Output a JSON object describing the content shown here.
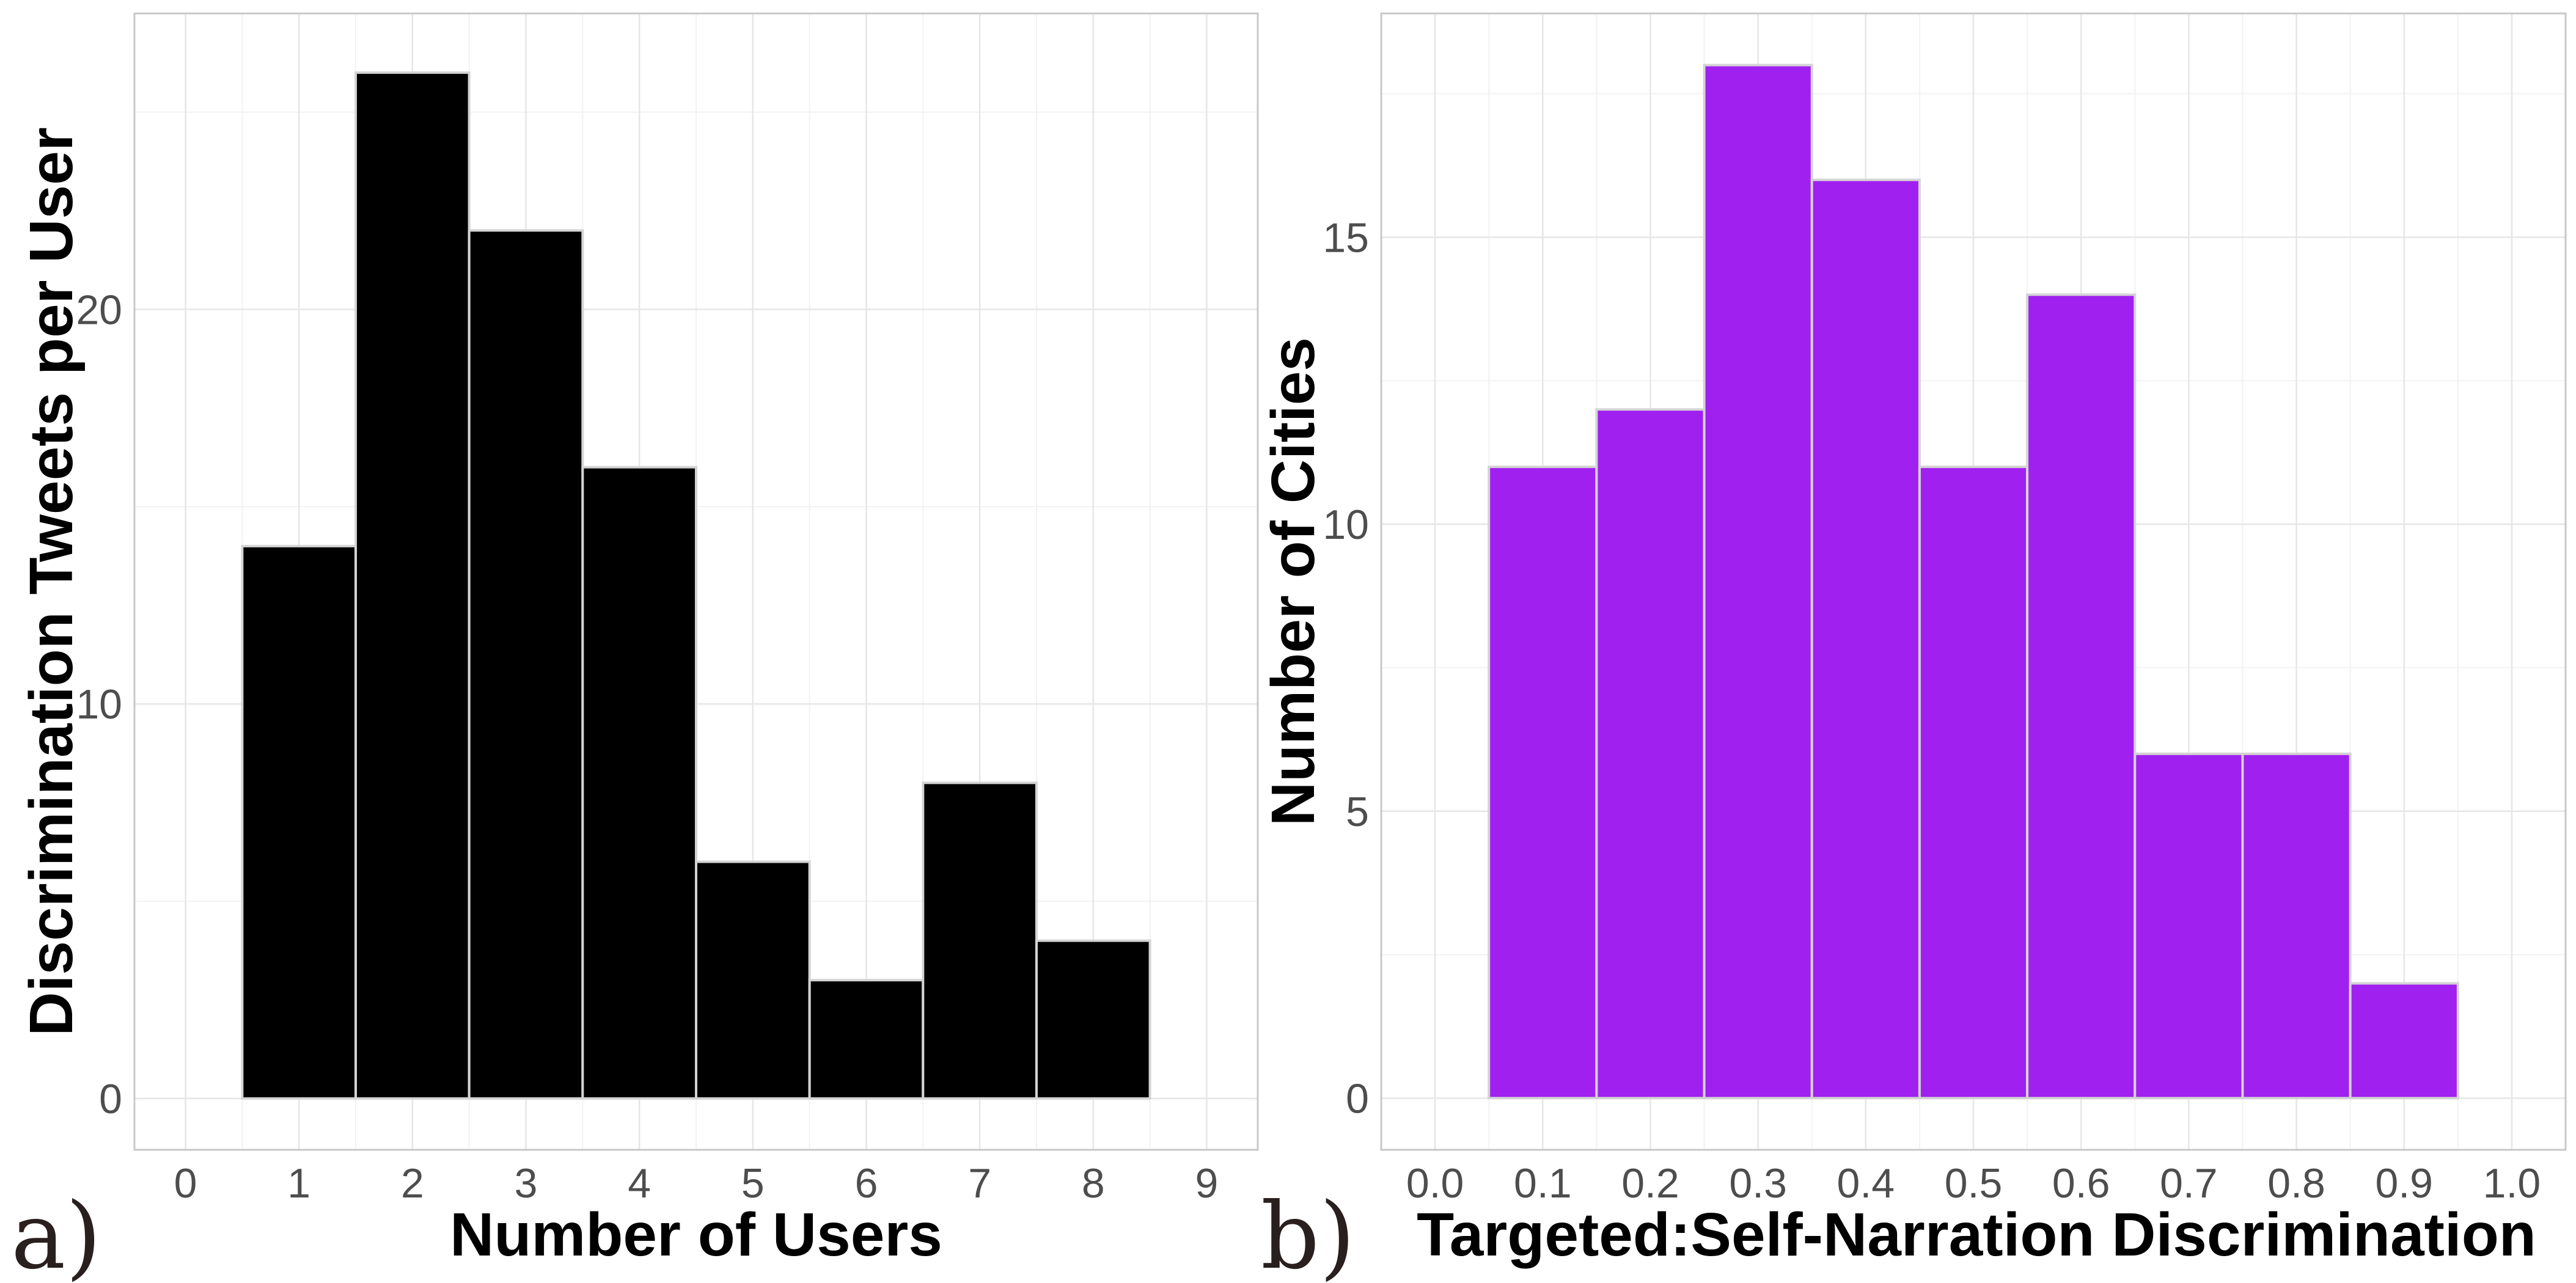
{
  "colors": {
    "background": "#ffffff",
    "panel_border": "#c8c8c8",
    "grid_major": "#e6e6e6",
    "grid_minor": "#f2f2f2",
    "bar_outline": "#d4d4d4",
    "tick_text": "#4d4d4d"
  },
  "chart_data": [
    {
      "type": "bar",
      "panel_tag": "a)",
      "title": "",
      "xlabel": "Number of Users",
      "ylabel": "Discrimination Tweets per User",
      "bar_color": "#000000",
      "x": [
        1,
        2,
        3,
        4,
        5,
        6,
        7,
        8
      ],
      "values": [
        14,
        26,
        22,
        16,
        6,
        3,
        8,
        4
      ],
      "bin_width": 1,
      "xlim": [
        -0.45,
        9.45
      ],
      "ylim": [
        -1.3,
        27.5
      ],
      "x_ticks": [
        "0",
        "1",
        "2",
        "3",
        "4",
        "5",
        "6",
        "7",
        "8",
        "9"
      ],
      "x_tick_values": [
        0,
        1,
        2,
        3,
        4,
        5,
        6,
        7,
        8,
        9
      ],
      "y_ticks": [
        "0",
        "10",
        "20"
      ],
      "y_tick_values": [
        0,
        10,
        20
      ],
      "grid": true,
      "legend": "none"
    },
    {
      "type": "bar",
      "panel_tag": "b)",
      "title": "",
      "xlabel": "Targeted:Self-Narration Discrimination",
      "ylabel": "Number of Cities",
      "bar_color": "#a020f0",
      "x": [
        0.1,
        0.2,
        0.3,
        0.4,
        0.5,
        0.6,
        0.7,
        0.8,
        0.9
      ],
      "values": [
        11,
        12,
        18,
        16,
        11,
        14,
        6,
        6,
        2
      ],
      "bin_width": 0.1,
      "xlim": [
        -0.05,
        1.05
      ],
      "ylim": [
        -0.9,
        18.9
      ],
      "x_ticks": [
        "0.0",
        "0.1",
        "0.2",
        "0.3",
        "0.4",
        "0.5",
        "0.6",
        "0.7",
        "0.8",
        "0.9",
        "1.0"
      ],
      "x_tick_values": [
        0,
        0.1,
        0.2,
        0.3,
        0.4,
        0.5,
        0.6,
        0.7,
        0.8,
        0.9,
        1.0
      ],
      "y_ticks": [
        "0",
        "5",
        "10",
        "15"
      ],
      "y_tick_values": [
        0,
        5,
        10,
        15
      ],
      "grid": true,
      "legend": "none"
    }
  ]
}
